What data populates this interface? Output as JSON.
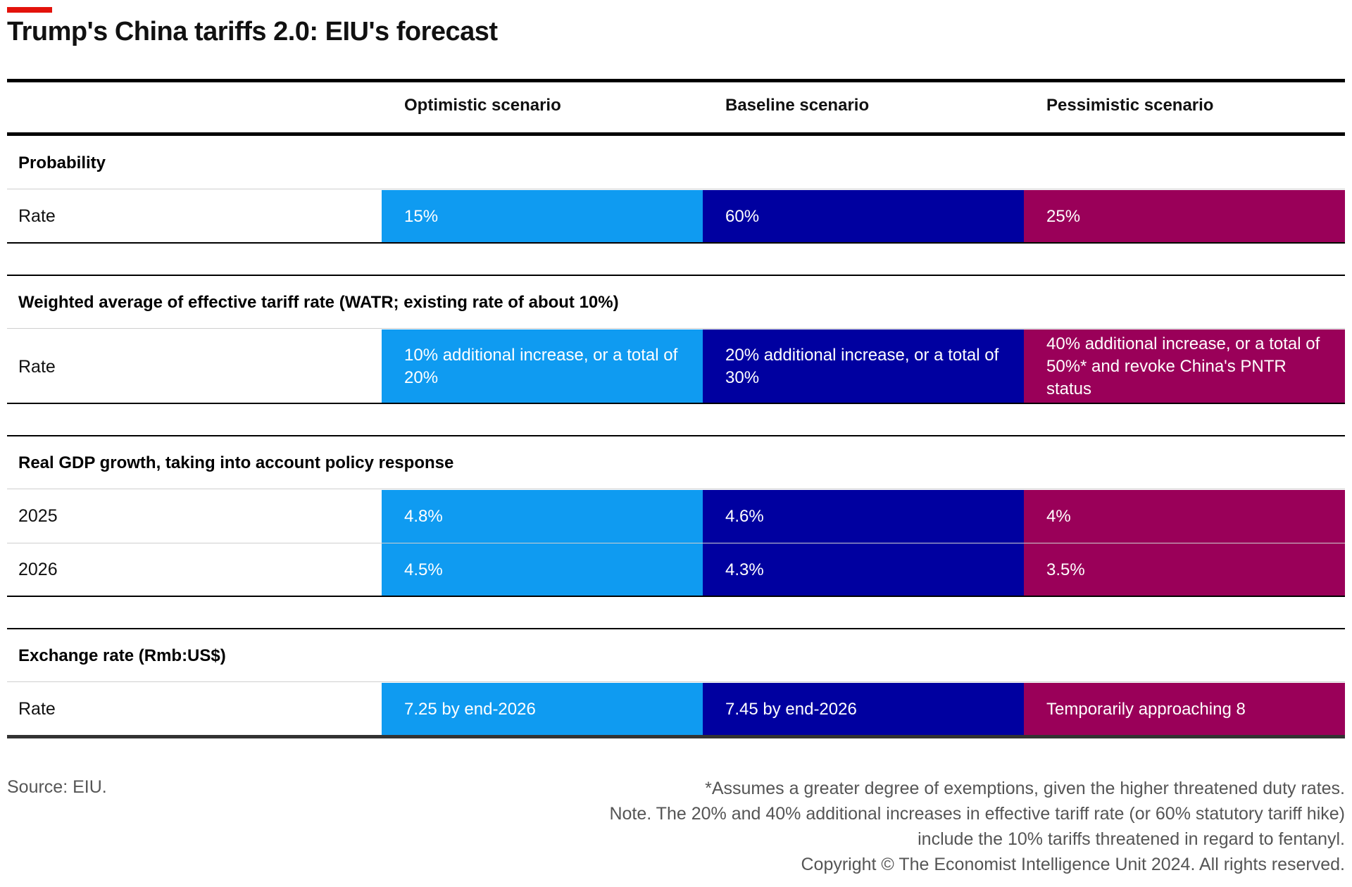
{
  "title": "Trump's China tariffs 2.0: EIU's forecast",
  "colors": {
    "accent": "#e3120b",
    "optimistic": "#0f9bf1",
    "baseline": "#0000a0",
    "pessimistic": "#9a0059"
  },
  "columns": [
    "Optimistic scenario",
    "Baseline scenario",
    "Pessimistic scenario"
  ],
  "sections": [
    {
      "heading": "Probability",
      "rows": [
        {
          "label": "Rate",
          "values": [
            "15%",
            "60%",
            "25%"
          ]
        }
      ]
    },
    {
      "heading": "Weighted average of effective tariff rate (WATR; existing rate of about 10%)",
      "rows": [
        {
          "label": "Rate",
          "values": [
            "10% additional increase, or a total of 20%",
            "20% additional increase, or a total of 30%",
            "40% additional increase, or a total of 50%* and revoke China's PNTR status"
          ]
        }
      ]
    },
    {
      "heading": "Real GDP growth, taking into account policy response",
      "rows": [
        {
          "label": "2025",
          "values": [
            "4.8%",
            "4.6%",
            "4%"
          ]
        },
        {
          "label": "2026",
          "values": [
            "4.5%",
            "4.3%",
            "3.5%"
          ]
        }
      ]
    },
    {
      "heading": "Exchange rate (Rmb:US$)",
      "rows": [
        {
          "label": "Rate",
          "values": [
            "7.25 by end-2026",
            "7.45 by end-2026",
            "Temporarily approaching 8"
          ]
        }
      ]
    }
  ],
  "footer": {
    "source": "Source: EIU.",
    "notes": [
      "*Assumes a greater degree of exemptions, given the higher threatened duty rates.",
      "Note. The 20% and 40% additional increases in effective tariff rate (or 60% statutory tariff hike)",
      "include the 10% tariffs threatened in regard to fentanyl.",
      "Copyright © The Economist Intelligence Unit 2024. All rights reserved."
    ]
  }
}
